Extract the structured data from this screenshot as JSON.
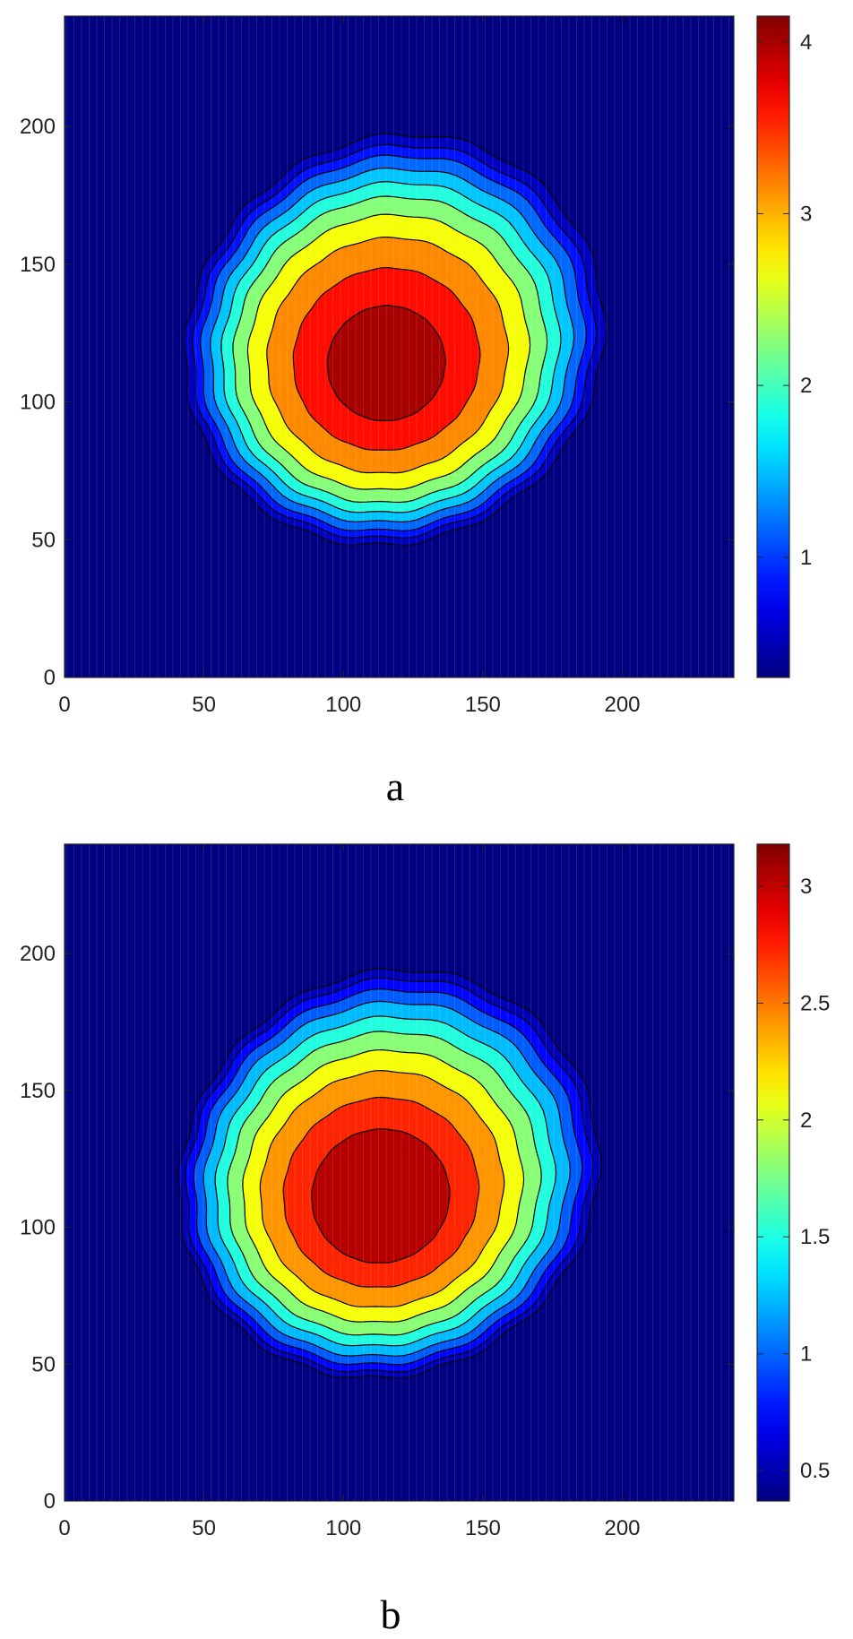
{
  "chart_data": [
    {
      "type": "heatmap",
      "caption": "a",
      "xlim": [
        0,
        240
      ],
      "ylim": [
        0,
        240
      ],
      "x_ticks": [
        0,
        50,
        100,
        150,
        200
      ],
      "y_ticks": [
        0,
        50,
        100,
        150,
        200
      ],
      "colormap": "jet",
      "field": {
        "peak": 4.15,
        "floor": 0.3,
        "center": [
          112,
          115
        ],
        "radius_x": 70,
        "radius_y": 72
      },
      "contour_levels": [
        0.38,
        0.7,
        1.0,
        1.35,
        1.7,
        2.05,
        2.45,
        2.9,
        3.4,
        3.85
      ],
      "colorbar": {
        "min": 0.3,
        "max": 4.15,
        "ticks": [
          1,
          2,
          3,
          4
        ]
      }
    },
    {
      "type": "heatmap",
      "caption": "b",
      "xlim": [
        0,
        240
      ],
      "ylim": [
        0,
        240
      ],
      "x_ticks": [
        0,
        50,
        100,
        150,
        200
      ],
      "y_ticks": [
        0,
        50,
        100,
        150,
        200
      ],
      "colormap": "jet",
      "field": {
        "peak": 3.18,
        "floor": 0.37,
        "center": [
          110,
          112
        ],
        "radius_x": 70,
        "radius_y": 72
      },
      "contour_levels": [
        0.42,
        0.62,
        0.85,
        1.1,
        1.38,
        1.65,
        1.95,
        2.25,
        2.58,
        2.88
      ],
      "colorbar": {
        "min": 0.37,
        "max": 3.18,
        "ticks": [
          0.5,
          1,
          1.5,
          2,
          2.5,
          3
        ]
      }
    }
  ]
}
